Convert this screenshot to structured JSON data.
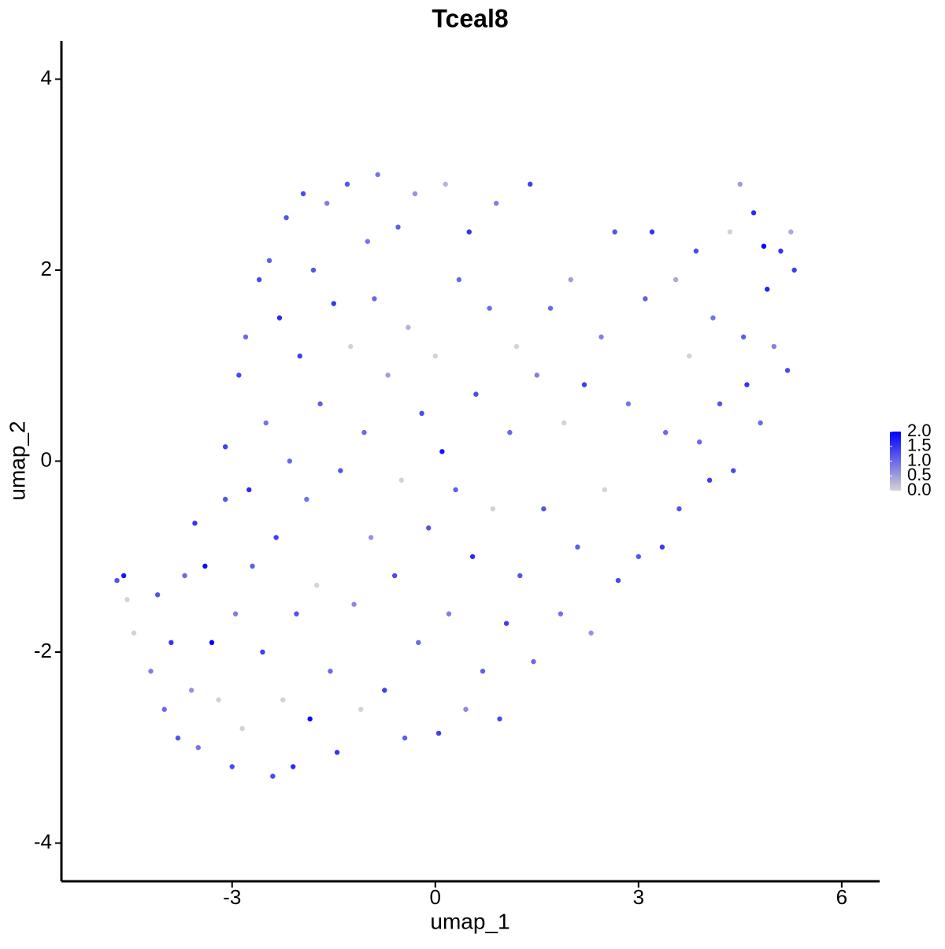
{
  "chart_data": {
    "type": "scatter",
    "title": "Tceal8",
    "x_label": "umap_1",
    "y_label": "umap_2",
    "xlim": [
      -5.52,
      6.56
    ],
    "ylim": [
      -4.4,
      4.4
    ],
    "xticks": [
      -3,
      0,
      3,
      6
    ],
    "yticks": [
      -4,
      -2,
      0,
      2,
      4
    ],
    "grid": false,
    "color_scale": {
      "low": "#d3d3d3",
      "high": "#0000ff",
      "lim": [
        0,
        2
      ],
      "ticks": [
        {
          "value": 0,
          "label": "0.0"
        },
        {
          "value": 0.5,
          "label": "0.5"
        },
        {
          "value": 1,
          "label": "1.0"
        },
        {
          "value": 1.5,
          "label": "1.5"
        },
        {
          "value": 2,
          "label": "2.0"
        }
      ]
    },
    "x": [
      -4.7,
      -4.6,
      -4.55,
      -4.45,
      -4.2,
      -4.1,
      -4.0,
      -3.9,
      -3.8,
      -3.7,
      -3.6,
      -3.55,
      -3.5,
      -3.4,
      -3.3,
      -3.2,
      -3.1,
      -3.1,
      -3.0,
      -2.95,
      -2.9,
      -2.85,
      -2.8,
      -2.75,
      -2.7,
      -2.6,
      -2.55,
      -2.5,
      -2.45,
      -2.4,
      -2.35,
      -2.3,
      -2.25,
      -2.2,
      -2.15,
      -2.1,
      -2.05,
      -2.0,
      -1.95,
      -1.9,
      -1.85,
      -1.8,
      -1.75,
      -1.7,
      -1.6,
      -1.55,
      -1.5,
      -1.45,
      -1.4,
      -1.3,
      -1.25,
      -1.2,
      -1.1,
      -1.05,
      -1.0,
      -0.95,
      -0.9,
      -0.85,
      -0.75,
      -0.7,
      -0.6,
      -0.55,
      -0.5,
      -0.45,
      -0.4,
      -0.3,
      -0.25,
      -0.2,
      -0.1,
      0.0,
      0.05,
      0.1,
      0.15,
      0.2,
      0.3,
      0.35,
      0.45,
      0.5,
      0.55,
      0.6,
      0.7,
      0.8,
      0.85,
      0.9,
      0.95,
      1.05,
      1.1,
      1.2,
      1.25,
      1.4,
      1.45,
      1.5,
      1.6,
      1.7,
      1.85,
      1.9,
      2.0,
      2.1,
      2.2,
      2.3,
      2.45,
      2.5,
      2.65,
      2.7,
      2.85,
      3.0,
      3.1,
      3.2,
      3.35,
      3.4,
      3.55,
      3.6,
      3.75,
      3.85,
      3.9,
      4.05,
      4.1,
      4.2,
      4.35,
      4.4,
      4.5,
      4.55,
      4.6,
      4.7,
      4.8,
      4.85,
      4.9,
      5.0,
      5.1,
      5.2,
      5.3,
      5.25
    ],
    "y": [
      -1.25,
      -1.2,
      -1.45,
      -1.8,
      -2.2,
      -1.4,
      -2.6,
      -1.9,
      -2.9,
      -1.2,
      -2.4,
      -0.65,
      -3.0,
      -1.1,
      -1.9,
      -2.5,
      -0.4,
      0.15,
      -3.2,
      -1.6,
      0.9,
      -2.8,
      1.3,
      -0.3,
      -1.1,
      1.9,
      -2.0,
      0.4,
      2.1,
      -3.3,
      -0.8,
      1.5,
      -2.5,
      2.55,
      0.0,
      -3.2,
      -1.6,
      1.1,
      2.8,
      -0.4,
      -2.7,
      2.0,
      -1.3,
      0.6,
      2.7,
      -2.2,
      1.65,
      -3.05,
      -0.1,
      2.9,
      1.2,
      -1.5,
      -2.6,
      0.3,
      2.3,
      -0.8,
      1.7,
      3.0,
      -2.4,
      0.9,
      -1.2,
      2.45,
      -0.2,
      -2.9,
      1.4,
      2.8,
      -1.9,
      0.5,
      -0.7,
      1.1,
      -2.85,
      0.1,
      2.9,
      -1.6,
      -0.3,
      1.9,
      -2.6,
      2.4,
      -1.0,
      0.7,
      -2.2,
      1.6,
      -0.5,
      2.7,
      -2.7,
      -1.7,
      0.3,
      1.2,
      -1.2,
      2.9,
      -2.1,
      0.9,
      -0.5,
      1.6,
      -1.6,
      0.4,
      1.9,
      -0.9,
      0.8,
      -1.8,
      1.3,
      -0.3,
      2.4,
      -1.25,
      0.6,
      -1.0,
      1.7,
      2.4,
      -0.9,
      0.3,
      1.9,
      -0.5,
      1.1,
      2.2,
      0.2,
      -0.2,
      1.5,
      0.6,
      2.4,
      -0.1,
      2.9,
      1.3,
      0.8,
      2.6,
      0.4,
      2.25,
      1.8,
      1.2,
      2.2,
      0.95,
      2.0,
      2.4
    ],
    "color_values": [
      1.2,
      1.8,
      0,
      0,
      0.8,
      1.2,
      1.0,
      1.5,
      1.2,
      1.0,
      0.6,
      1.5,
      0.9,
      1.9,
      2.0,
      0,
      1.2,
      1.4,
      1.3,
      0.8,
      1.3,
      0,
      1.0,
      1.6,
      1.1,
      1.3,
      1.4,
      0.9,
      1.1,
      1.3,
      1.4,
      1.6,
      0,
      1.2,
      1.0,
      1.6,
      1.2,
      1.4,
      1.3,
      0.9,
      1.9,
      1.2,
      0,
      1.1,
      0.8,
      1.0,
      1.5,
      1.5,
      1.2,
      1.2,
      0,
      0.7,
      0,
      1.0,
      0.9,
      0.6,
      1.0,
      0.9,
      1.4,
      0.5,
      1.3,
      1.1,
      0,
      1.1,
      0.3,
      0.6,
      1.0,
      1.3,
      1.2,
      0,
      1.4,
      1.8,
      0.3,
      0.8,
      1.1,
      1.0,
      0.7,
      1.5,
      1.6,
      1.3,
      1.1,
      1.0,
      0,
      0.8,
      1.3,
      1.4,
      1.0,
      0,
      1.2,
      1.4,
      1.0,
      0.8,
      1.2,
      1.0,
      0.9,
      0,
      0.5,
      1.1,
      1.4,
      0.6,
      0.8,
      0,
      1.2,
      1.3,
      0.9,
      1.2,
      1.1,
      1.5,
      1.4,
      1.0,
      0.4,
      1.2,
      0,
      1.3,
      1.0,
      1.4,
      0.9,
      1.2,
      0,
      1.3,
      0.5,
      1.1,
      1.5,
      1.6,
      1.0,
      2.0,
      1.7,
      0.8,
      1.5,
      1.3,
      1.4,
      0.4
    ]
  }
}
